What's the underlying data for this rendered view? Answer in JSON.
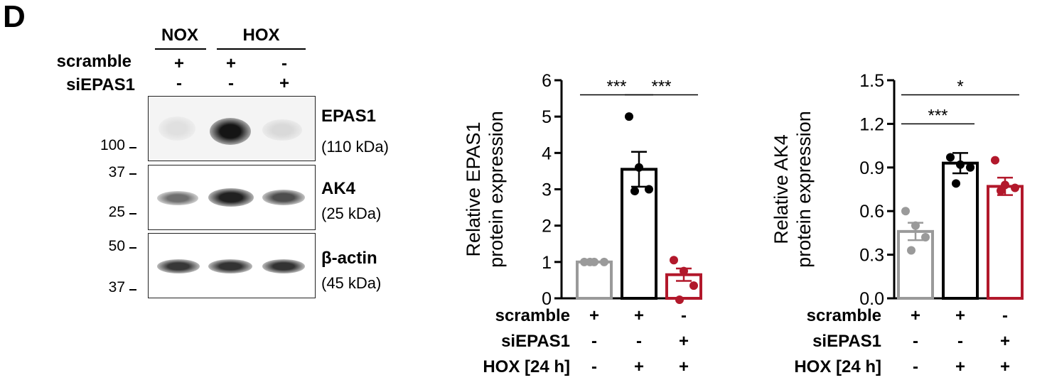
{
  "panel_label": "D",
  "blot": {
    "groups": [
      "NOX",
      "HOX"
    ],
    "rows": [
      {
        "label": "scramble",
        "signs": [
          "+",
          "+",
          "-"
        ]
      },
      {
        "label": "siEPAS1",
        "signs": [
          "-",
          "-",
          "+"
        ]
      }
    ],
    "proteins": [
      {
        "name": "EPAS1",
        "kda": "(110 kDa)",
        "markers": [
          "100"
        ]
      },
      {
        "name": "AK4",
        "kda": "(25 kDa)",
        "markers": [
          "37",
          "25"
        ]
      },
      {
        "name": "β-actin",
        "kda": "(45 kDa)",
        "markers": [
          "50",
          "37"
        ]
      }
    ],
    "band_intensity": [
      [
        0.05,
        0.95,
        0.08
      ],
      [
        0.55,
        0.9,
        0.7
      ],
      [
        0.8,
        0.82,
        0.82
      ]
    ]
  },
  "chart_data": [
    {
      "type": "bar",
      "categories": [
        "scramble +, siEPAS1 -, HOX [24 h] -",
        "scramble +, siEPAS1 -, HOX [24 h] +",
        "scramble -, siEPAS1 +, HOX [24 h] +"
      ],
      "values": [
        1.0,
        3.55,
        0.65
      ],
      "errors": [
        0.0,
        0.48,
        0.17
      ],
      "points": [
        [
          1.0,
          1.0,
          1.0,
          1.0
        ],
        [
          5.0,
          3.6,
          3.0,
          2.95
        ],
        [
          1.05,
          0.75,
          0.35,
          -0.05
        ]
      ],
      "colors": [
        "#9a9a9a",
        "#000000",
        "#b2182b"
      ],
      "ylabel": [
        "Relative EPAS1",
        "protein expression"
      ],
      "ylim": [
        0,
        6
      ],
      "yticks": [
        "0",
        "1",
        "2",
        "3",
        "4",
        "5",
        "6"
      ],
      "condition_rows": [
        {
          "label": "scramble",
          "signs": [
            "+",
            "+",
            "-"
          ]
        },
        {
          "label": "siEPAS1",
          "signs": [
            "-",
            "-",
            "+"
          ]
        },
        {
          "label": "HOX [24 h]",
          "signs": [
            "-",
            "+",
            "+"
          ]
        }
      ],
      "significance": [
        {
          "from": 0,
          "to": 1,
          "label": "***",
          "y": 5.6
        },
        {
          "from": 1,
          "to": 2,
          "label": "***",
          "y": 5.6
        }
      ]
    },
    {
      "type": "bar",
      "categories": [
        "scramble +, siEPAS1 -, HOX [24 h] -",
        "scramble +, siEPAS1 -, HOX [24 h] +",
        "scramble -, siEPAS1 +, HOX [24 h] +"
      ],
      "values": [
        0.46,
        0.93,
        0.77
      ],
      "errors": [
        0.06,
        0.07,
        0.06
      ],
      "points": [
        [
          0.6,
          0.5,
          0.42,
          0.33
        ],
        [
          0.97,
          0.92,
          0.9,
          0.79
        ],
        [
          0.95,
          0.78,
          0.76,
          0.74
        ]
      ],
      "colors": [
        "#9a9a9a",
        "#000000",
        "#b2182b"
      ],
      "ylabel": [
        "Relative AK4",
        "protein expression"
      ],
      "ylim": [
        0,
        1.5
      ],
      "yticks": [
        "0.0",
        "0.3",
        "0.6",
        "0.9",
        "1.2",
        "1.5"
      ],
      "condition_rows": [
        {
          "label": "scramble",
          "signs": [
            "+",
            "+",
            "-"
          ]
        },
        {
          "label": "siEPAS1",
          "signs": [
            "-",
            "-",
            "+"
          ]
        },
        {
          "label": "HOX [24 h]",
          "signs": [
            "-",
            "+",
            "+"
          ]
        }
      ],
      "significance": [
        {
          "from": 0,
          "to": 1,
          "label": "***",
          "y": 1.2
        },
        {
          "from": 0,
          "to": 2,
          "label": "*",
          "y": 1.4
        }
      ]
    }
  ]
}
